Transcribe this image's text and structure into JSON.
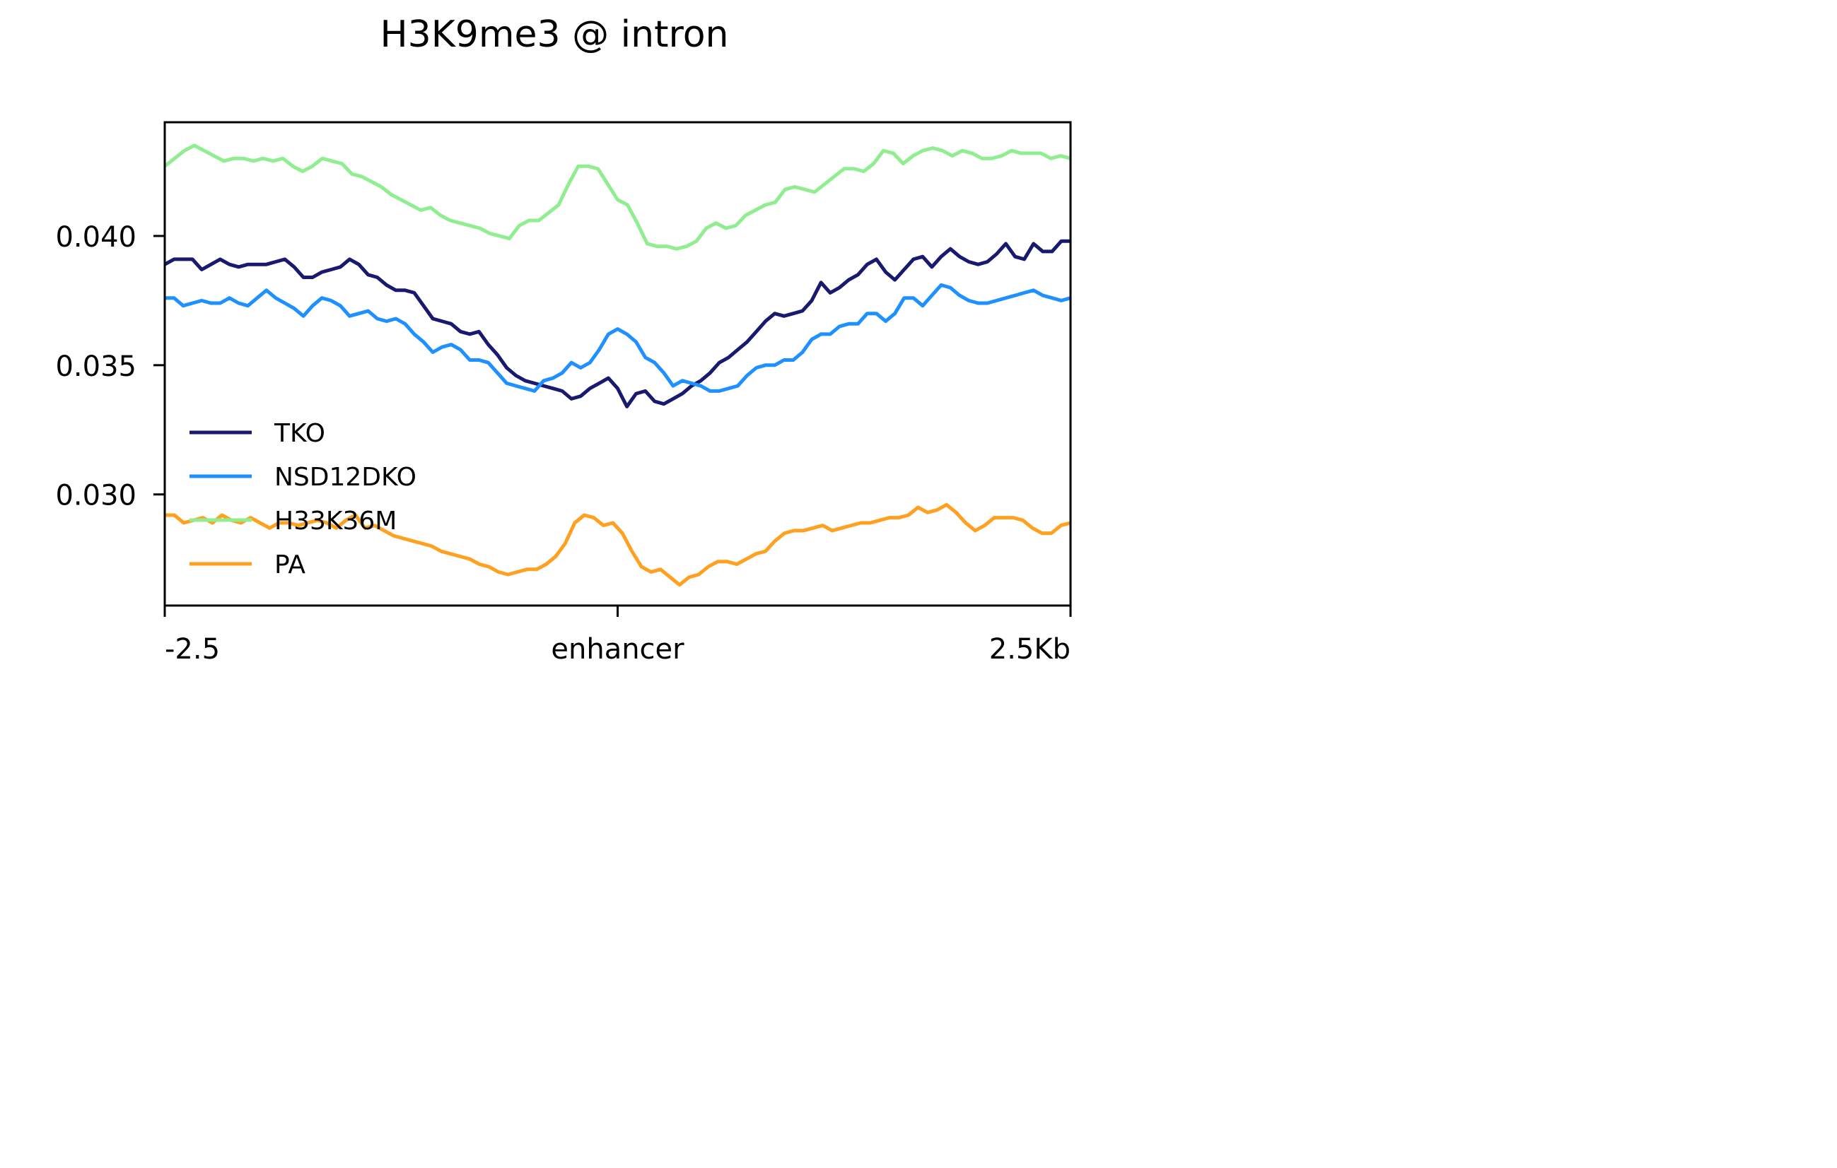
{
  "chart_data": {
    "type": "line",
    "title": "H3K9me3 @ intron",
    "xlabel": "",
    "ylabel": "",
    "x_tick_labels": [
      "-2.5",
      "enhancer",
      "2.5Kb"
    ],
    "x_tick_positions": [
      0,
      50,
      100
    ],
    "xlim": [
      0,
      100
    ],
    "y_ticks": [
      0.03,
      0.035,
      0.04
    ],
    "y_tick_labels": [
      "0.030",
      "0.035",
      "0.040"
    ],
    "ylim": [
      0.0257,
      0.0444
    ],
    "grid": false,
    "legend_position": "lower-left",
    "series": [
      {
        "name": "TKO",
        "color": "#191970",
        "values": [
          0.0389,
          0.0391,
          0.0391,
          0.0391,
          0.0387,
          0.0389,
          0.0391,
          0.0389,
          0.0388,
          0.0389,
          0.0389,
          0.0389,
          0.039,
          0.0391,
          0.0388,
          0.0384,
          0.0384,
          0.0386,
          0.0387,
          0.0388,
          0.0391,
          0.0389,
          0.0385,
          0.0384,
          0.0381,
          0.0379,
          0.0379,
          0.0378,
          0.0373,
          0.0368,
          0.0367,
          0.0366,
          0.0363,
          0.0362,
          0.0363,
          0.0358,
          0.0354,
          0.0349,
          0.0346,
          0.0344,
          0.0343,
          0.0342,
          0.0341,
          0.034,
          0.0337,
          0.0338,
          0.0341,
          0.0343,
          0.0345,
          0.0341,
          0.0334,
          0.0339,
          0.034,
          0.0336,
          0.0335,
          0.0337,
          0.0339,
          0.0342,
          0.0344,
          0.0347,
          0.0351,
          0.0353,
          0.0356,
          0.0359,
          0.0363,
          0.0367,
          0.037,
          0.0369,
          0.037,
          0.0371,
          0.0375,
          0.0382,
          0.0378,
          0.038,
          0.0383,
          0.0385,
          0.0389,
          0.0391,
          0.0386,
          0.0383,
          0.0387,
          0.0391,
          0.0392,
          0.0388,
          0.0392,
          0.0395,
          0.0392,
          0.039,
          0.0389,
          0.039,
          0.0393,
          0.0397,
          0.0392,
          0.0391,
          0.0397,
          0.0394,
          0.0394,
          0.0398,
          0.0398
        ]
      },
      {
        "name": "NSD12DKO",
        "color": "#1e90ff",
        "values": [
          0.0376,
          0.0376,
          0.0373,
          0.0374,
          0.0375,
          0.0374,
          0.0374,
          0.0376,
          0.0374,
          0.0373,
          0.0376,
          0.0379,
          0.0376,
          0.0374,
          0.0372,
          0.0369,
          0.0373,
          0.0376,
          0.0375,
          0.0373,
          0.0369,
          0.037,
          0.0371,
          0.0368,
          0.0367,
          0.0368,
          0.0366,
          0.0362,
          0.0359,
          0.0355,
          0.0357,
          0.0358,
          0.0356,
          0.0352,
          0.0352,
          0.0351,
          0.0347,
          0.0343,
          0.0342,
          0.0341,
          0.034,
          0.0344,
          0.0345,
          0.0347,
          0.0351,
          0.0349,
          0.0351,
          0.0356,
          0.0362,
          0.0364,
          0.0362,
          0.0359,
          0.0353,
          0.0351,
          0.0347,
          0.0342,
          0.0344,
          0.0343,
          0.0342,
          0.034,
          0.034,
          0.0341,
          0.0342,
          0.0346,
          0.0349,
          0.035,
          0.035,
          0.0352,
          0.0352,
          0.0355,
          0.036,
          0.0362,
          0.0362,
          0.0365,
          0.0366,
          0.0366,
          0.037,
          0.037,
          0.0367,
          0.037,
          0.0376,
          0.0376,
          0.0373,
          0.0377,
          0.0381,
          0.038,
          0.0377,
          0.0375,
          0.0374,
          0.0374,
          0.0375,
          0.0376,
          0.0377,
          0.0378,
          0.0379,
          0.0377,
          0.0376,
          0.0375,
          0.0376
        ]
      },
      {
        "name": "H33K36M",
        "color": "#90ee90",
        "values": [
          0.0427,
          0.043,
          0.0433,
          0.0435,
          0.0433,
          0.0431,
          0.0429,
          0.043,
          0.043,
          0.0429,
          0.043,
          0.0429,
          0.043,
          0.0427,
          0.0425,
          0.0427,
          0.043,
          0.0429,
          0.0428,
          0.0424,
          0.0423,
          0.0421,
          0.0419,
          0.0416,
          0.0414,
          0.0412,
          0.041,
          0.0411,
          0.0408,
          0.0406,
          0.0405,
          0.0404,
          0.0403,
          0.0401,
          0.04,
          0.0399,
          0.0404,
          0.0406,
          0.0406,
          0.0409,
          0.0412,
          0.042,
          0.0427,
          0.0427,
          0.0426,
          0.042,
          0.0414,
          0.0412,
          0.0405,
          0.0397,
          0.0396,
          0.0396,
          0.0395,
          0.0396,
          0.0398,
          0.0403,
          0.0405,
          0.0403,
          0.0404,
          0.0408,
          0.041,
          0.0412,
          0.0413,
          0.0418,
          0.0419,
          0.0418,
          0.0417,
          0.042,
          0.0423,
          0.0426,
          0.0426,
          0.0425,
          0.0428,
          0.0433,
          0.0432,
          0.0428,
          0.0431,
          0.0433,
          0.0434,
          0.0433,
          0.0431,
          0.0433,
          0.0432,
          0.043,
          0.043,
          0.0431,
          0.0433,
          0.0432,
          0.0432,
          0.0432,
          0.043,
          0.0431,
          0.043
        ]
      },
      {
        "name": "PA",
        "color": "#ffa020",
        "values": [
          0.0292,
          0.0292,
          0.0289,
          0.029,
          0.0291,
          0.0289,
          0.0292,
          0.029,
          0.0289,
          0.0291,
          0.0289,
          0.0287,
          0.0289,
          0.0289,
          0.0288,
          0.0289,
          0.029,
          0.0289,
          0.0287,
          0.029,
          0.0292,
          0.0287,
          0.0288,
          0.0286,
          0.0284,
          0.0283,
          0.0282,
          0.0281,
          0.028,
          0.0278,
          0.0277,
          0.0276,
          0.0275,
          0.0273,
          0.0272,
          0.027,
          0.0269,
          0.027,
          0.0271,
          0.0271,
          0.0273,
          0.0276,
          0.0281,
          0.0289,
          0.0292,
          0.0291,
          0.0288,
          0.0289,
          0.0285,
          0.0278,
          0.0272,
          0.027,
          0.0271,
          0.0268,
          0.0265,
          0.0268,
          0.0269,
          0.0272,
          0.0274,
          0.0274,
          0.0273,
          0.0275,
          0.0277,
          0.0278,
          0.0282,
          0.0285,
          0.0286,
          0.0286,
          0.0287,
          0.0288,
          0.0286,
          0.0287,
          0.0288,
          0.0289,
          0.0289,
          0.029,
          0.0291,
          0.0291,
          0.0292,
          0.0295,
          0.0293,
          0.0294,
          0.0296,
          0.0293,
          0.0289,
          0.0286,
          0.0288,
          0.0291,
          0.0291,
          0.0291,
          0.029,
          0.0287,
          0.0285,
          0.0285,
          0.0288,
          0.0289
        ]
      }
    ]
  }
}
